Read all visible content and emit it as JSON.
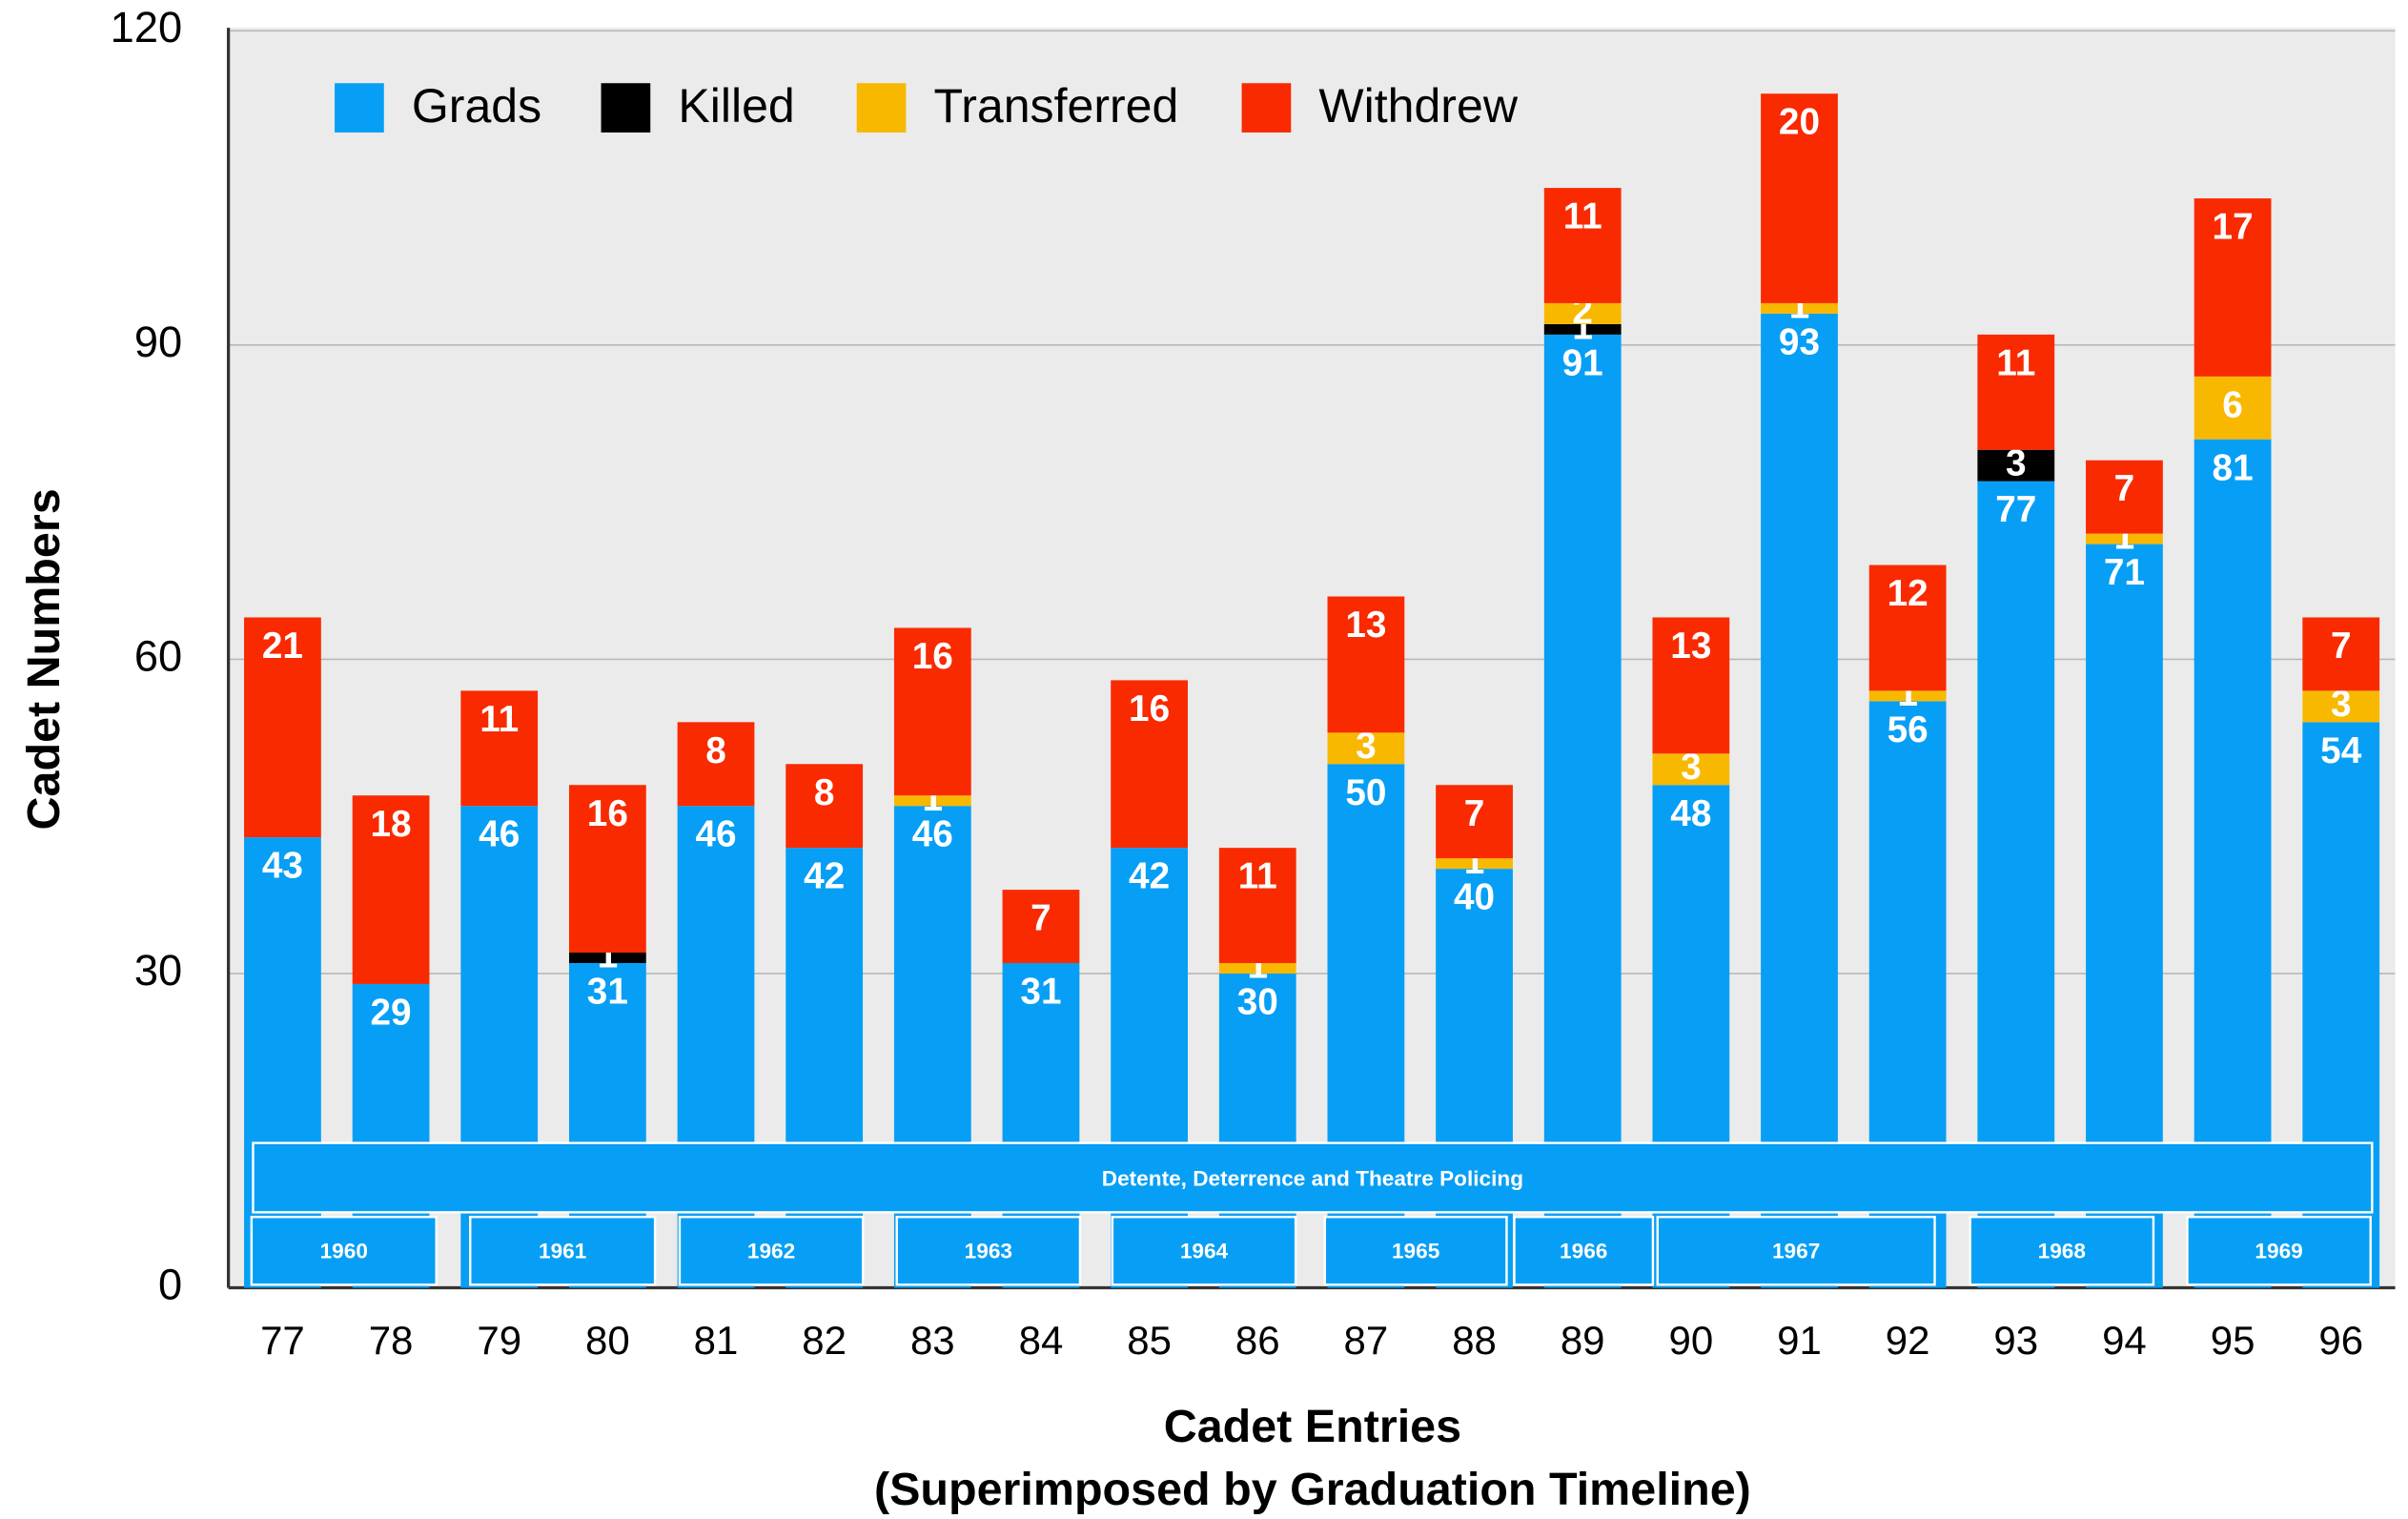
{
  "chart_data": {
    "type": "stacked_bar",
    "ylabel": "Cadet Numbers",
    "xlabel": "Cadet Entries",
    "xlabel_note": "(Superimposed by Graduation Timeline)",
    "categories": [
      "77",
      "78",
      "79",
      "80",
      "81",
      "82",
      "83",
      "84",
      "85",
      "86",
      "87",
      "88",
      "89",
      "90",
      "91",
      "92",
      "93",
      "94",
      "95",
      "96"
    ],
    "series": [
      {
        "name": "Grads",
        "color": "#069ff5",
        "values": [
          43,
          29,
          46,
          31,
          46,
          42,
          46,
          31,
          42,
          30,
          50,
          40,
          91,
          48,
          93,
          56,
          77,
          71,
          81,
          54
        ]
      },
      {
        "name": "Killed",
        "color": "#000000",
        "values": [
          0,
          0,
          0,
          1,
          0,
          0,
          0,
          0,
          0,
          0,
          0,
          0,
          1,
          0,
          0,
          0,
          3,
          0,
          0,
          0
        ]
      },
      {
        "name": "Transferred",
        "color": "#f8b800",
        "values": [
          0,
          0,
          0,
          0,
          0,
          0,
          1,
          0,
          0,
          1,
          3,
          1,
          2,
          3,
          1,
          1,
          0,
          1,
          6,
          3
        ]
      },
      {
        "name": "Withdrew",
        "color": "#f92a00",
        "values": [
          21,
          18,
          11,
          16,
          8,
          8,
          16,
          7,
          16,
          11,
          13,
          7,
          11,
          13,
          20,
          12,
          11,
          7,
          17,
          7
        ]
      }
    ],
    "ylim": [
      0,
      120
    ],
    "yticks": [
      0,
      30,
      60,
      90,
      120
    ],
    "grid": true,
    "legend": "top-left",
    "timeline": {
      "era": "Detente, Deterrence and Theatre Policing",
      "years": [
        "1960",
        "1961",
        "1962",
        "1963",
        "1964",
        "1965",
        "1966",
        "1967",
        "1968",
        "1969"
      ]
    }
  }
}
